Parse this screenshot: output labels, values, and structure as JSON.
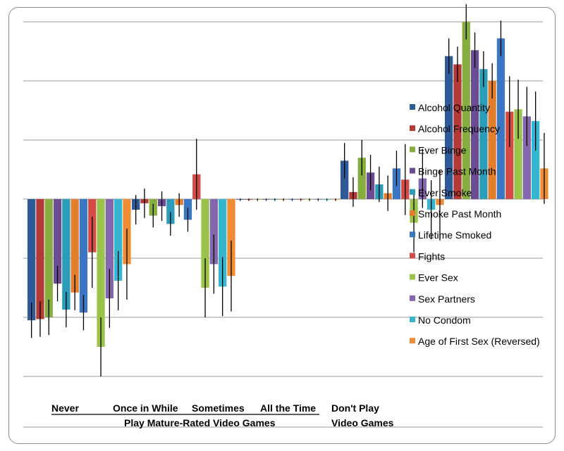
{
  "chart_data": {
    "type": "bar",
    "title": "",
    "xlabel": "",
    "ylabel": "",
    "ylim": [
      -3,
      3
    ],
    "grid": true,
    "legend_position": "right",
    "categories": [
      "Never",
      "Once in While",
      "Sometimes",
      "All the Time",
      "Don't Play"
    ],
    "category_underline_groups": [
      {
        "label": "Play Mature-Rated Video Games",
        "categories": [
          0,
          1,
          2,
          3
        ]
      },
      {
        "label": "Video Games",
        "categories": [
          4
        ]
      }
    ],
    "series": [
      {
        "name": "Alcohol Quantity",
        "color": "#2E5B98",
        "values": [
          -2.05,
          -0.18,
          -0.01,
          0.65,
          2.42
        ],
        "errors": [
          0.3,
          0.25,
          0.02,
          0.3,
          0.3
        ]
      },
      {
        "name": "Alcohol Frequency",
        "color": "#B33A36",
        "values": [
          -2.03,
          -0.07,
          -0.01,
          0.12,
          2.28
        ],
        "errors": [
          0.3,
          0.25,
          0.02,
          0.25,
          0.3
        ]
      },
      {
        "name": "Ever Binge",
        "color": "#86AE3E",
        "values": [
          -2.0,
          -0.28,
          -0.01,
          0.7,
          3.0
        ],
        "errors": [
          0.3,
          0.2,
          0.02,
          0.3,
          0.3
        ]
      },
      {
        "name": "Binge Past Month",
        "color": "#6B4C92",
        "values": [
          -1.43,
          -0.12,
          -0.01,
          0.45,
          2.52
        ],
        "errors": [
          0.3,
          0.25,
          0.02,
          0.3,
          0.3
        ]
      },
      {
        "name": "Ever Smoke",
        "color": "#2C9CB8",
        "values": [
          -1.87,
          -0.42,
          -0.01,
          0.25,
          2.2
        ],
        "errors": [
          0.3,
          0.2,
          0.02,
          0.3,
          0.3
        ]
      },
      {
        "name": "Smoke Past Month",
        "color": "#E27E2C",
        "values": [
          -1.58,
          -0.1,
          -0.01,
          0.1,
          2.0
        ],
        "errors": [
          0.3,
          0.2,
          0.02,
          0.3,
          0.3
        ]
      },
      {
        "name": "Lifetime Smoked",
        "color": "#3A76C2",
        "values": [
          -1.92,
          -0.35,
          -0.01,
          0.52,
          2.72
        ],
        "errors": [
          0.3,
          0.2,
          0.02,
          0.3,
          0.3
        ]
      },
      {
        "name": "Fights",
        "color": "#D24B45",
        "values": [
          -0.9,
          0.42,
          -0.01,
          0.33,
          1.48
        ],
        "errors": [
          0.6,
          0.6,
          0.02,
          0.6,
          0.6
        ]
      },
      {
        "name": "Ever Sex",
        "color": "#9BC34B",
        "values": [
          -2.5,
          -1.5,
          -0.01,
          -0.4,
          1.52
        ],
        "errors": [
          0.5,
          0.5,
          0.02,
          0.5,
          0.5
        ]
      },
      {
        "name": "Sex Partners",
        "color": "#8466AE",
        "values": [
          -1.68,
          -1.1,
          -0.01,
          0.35,
          1.4
        ],
        "errors": [
          0.5,
          0.5,
          0.02,
          0.5,
          0.5
        ]
      },
      {
        "name": "No Condom",
        "color": "#36B5D0",
        "values": [
          -1.38,
          -1.48,
          -0.01,
          -0.18,
          1.32
        ],
        "errors": [
          0.5,
          0.5,
          0.02,
          0.5,
          0.5
        ]
      },
      {
        "name": "Age of First Sex (Reversed)",
        "color": "#F08C35",
        "values": [
          -1.1,
          -1.3,
          -0.01,
          -0.1,
          0.52
        ],
        "errors": [
          0.6,
          0.6,
          0.02,
          0.6,
          0.6
        ]
      }
    ]
  }
}
